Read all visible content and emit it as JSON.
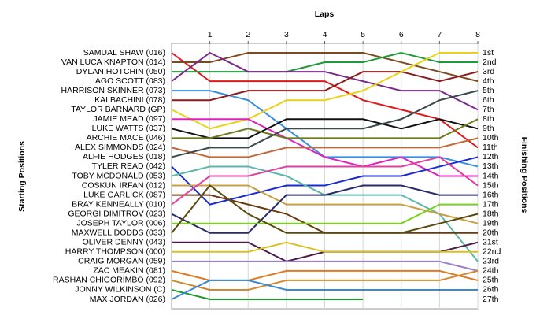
{
  "chart_data": {
    "type": "lap-chart",
    "title": "Laps",
    "y_title_left": "Starting Positions",
    "y_title_right": "Finishing Positions",
    "x": [
      0,
      1,
      2,
      3,
      4,
      5,
      6,
      7,
      8
    ],
    "xlim": [
      0,
      8
    ],
    "xticks": [
      1,
      2,
      3,
      4,
      5,
      6,
      7,
      8
    ],
    "ylim": [
      1,
      27
    ],
    "grid": true,
    "finish_labels": [
      "1st",
      "2nd",
      "3rd",
      "4th",
      "5th",
      "6th",
      "7th",
      "8th",
      "9th",
      "10th",
      "11th",
      "12th",
      "13th",
      "14th",
      "15th",
      "16th",
      "17th",
      "18th",
      "19th",
      "20th",
      "21st",
      "22nd",
      "23rd",
      "24th",
      "25th",
      "26th",
      "27th"
    ],
    "series": [
      {
        "name": "SAMUAL SHAW (016)",
        "color": "#e0191b",
        "values": [
          1,
          4,
          4,
          4,
          4,
          6,
          7,
          8,
          11
        ]
      },
      {
        "name": "VAN LUCA KNAPTON (014)",
        "color": "#7b4a1e",
        "values": [
          2,
          2,
          1,
          1,
          1,
          1,
          2,
          3,
          4
        ]
      },
      {
        "name": "DYLAN HOTCHIN (050)",
        "color": "#1e9a3a",
        "values": [
          3,
          3,
          3,
          3,
          2,
          2,
          1,
          2,
          2
        ]
      },
      {
        "name": "IAGO SCOTT (083)",
        "color": "#7a2a8a",
        "values": [
          4,
          1,
          3,
          3,
          3,
          4,
          5,
          5,
          7
        ]
      },
      {
        "name": "HARRISON SKINNER (073)",
        "color": "#3a8ee0",
        "values": [
          5,
          5,
          6,
          9,
          12,
          12,
          12,
          12,
          13
        ]
      },
      {
        "name": "KAI BACHINI (078)",
        "color": "#8b1a1a",
        "values": [
          6,
          6,
          5,
          5,
          5,
          3,
          3,
          4,
          3
        ]
      },
      {
        "name": "TAYLOR BARNARD (GP)",
        "color": "#e8d21a",
        "values": [
          7,
          9,
          8,
          6,
          6,
          5,
          3,
          1,
          1
        ]
      },
      {
        "name": "JAMIE MEAD (097)",
        "color": "#e020c0",
        "values": [
          8,
          8,
          8,
          10,
          12,
          13,
          12,
          14,
          14
        ]
      },
      {
        "name": "LUKE WATTS (037)",
        "color": "#111111",
        "values": [
          9,
          10,
          10,
          8,
          8,
          8,
          9,
          8,
          9
        ]
      },
      {
        "name": "ARCHIE MACE (046)",
        "color": "#6b7a1a",
        "values": [
          10,
          10,
          9,
          10,
          10,
          10,
          10,
          10,
          8
        ]
      },
      {
        "name": "ALEX SIMMONDS (024)",
        "color": "#c06a3a",
        "values": [
          11,
          12,
          12,
          11,
          11,
          11,
          11,
          11,
          10
        ]
      },
      {
        "name": "ALFIE HODGES (018)",
        "color": "#3a4a4a",
        "values": [
          12,
          11,
          11,
          9,
          9,
          9,
          8,
          6,
          5
        ]
      },
      {
        "name": "TYLER READ (042)",
        "color": "#1a2ad0",
        "values": [
          13,
          17,
          16,
          15,
          15,
          14,
          14,
          13,
          12
        ]
      },
      {
        "name": "TOBY MCDONALD (053)",
        "color": "#5ab8a8",
        "values": [
          14,
          13,
          13,
          14,
          16,
          16,
          16,
          18,
          23
        ]
      },
      {
        "name": "COSKUN IRFAN (012)",
        "color": "#c8a040",
        "values": [
          15,
          15,
          15,
          17,
          17,
          17,
          17,
          18,
          19
        ]
      },
      {
        "name": "LUKE GARLICK (087)",
        "color": "#6a3a10",
        "values": [
          16,
          16,
          17,
          18,
          20,
          20,
          20,
          20,
          20
        ]
      },
      {
        "name": "BRAY KENNEALLY (010)",
        "color": "#e040a0",
        "values": [
          17,
          14,
          14,
          13,
          13,
          13,
          13,
          12,
          15
        ]
      },
      {
        "name": "GEORGI DIMITROV (023)",
        "color": "#2a2a6a",
        "values": [
          18,
          20,
          20,
          16,
          16,
          15,
          15,
          16,
          16
        ]
      },
      {
        "name": "JOSEPH TAYLOR (006)",
        "color": "#7ad020",
        "values": [
          19,
          19,
          19,
          19,
          19,
          19,
          19,
          17,
          17
        ]
      },
      {
        "name": "MAXWELL DODDS (033)",
        "color": "#5a4a10",
        "values": [
          20,
          15,
          18,
          20,
          20,
          20,
          20,
          19,
          18
        ]
      },
      {
        "name": "OLIVER DENNY (043)",
        "color": "#4a1a4a",
        "values": [
          21,
          21,
          21,
          23,
          22,
          22,
          22,
          22,
          21
        ]
      },
      {
        "name": "HARRY THOMPSON (000)",
        "color": "#d8c020",
        "values": [
          22,
          22,
          22,
          21,
          22,
          22,
          22,
          22,
          22
        ]
      },
      {
        "name": "CRAIG MORGAN (059)",
        "color": "#9a80c8",
        "values": [
          23,
          23,
          23,
          23,
          23,
          23,
          23,
          23,
          24
        ]
      },
      {
        "name": "ZAC MEAKIN (081)",
        "color": "#e07a20",
        "values": [
          24,
          25,
          25,
          24,
          24,
          24,
          24,
          24,
          25
        ]
      },
      {
        "name": "RASHAN CHIGORIMBO (092)",
        "color": "#d08a30",
        "values": [
          25,
          26,
          26,
          25,
          25,
          25,
          25,
          25,
          24
        ]
      },
      {
        "name": "JONNY WILKINSON (C)",
        "color": "#1a9a2a",
        "values": [
          26,
          27,
          27,
          27,
          27,
          27,
          null,
          null,
          null
        ]
      },
      {
        "name": "MAX JORDAN (026)",
        "color": "#3a8ad0",
        "values": [
          27,
          25,
          25,
          26,
          26,
          26,
          26,
          26,
          26
        ]
      }
    ]
  }
}
